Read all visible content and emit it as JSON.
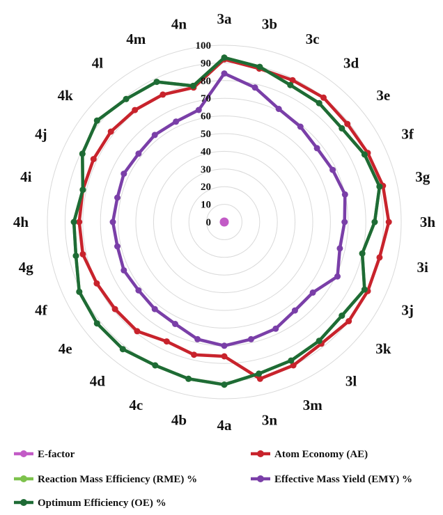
{
  "chart_data": {
    "type": "radar",
    "categories": [
      "3a",
      "3b",
      "3c",
      "3d",
      "3e",
      "3f",
      "3g",
      "3h",
      "3i",
      "3j",
      "3k",
      "3l",
      "3m",
      "3n",
      "4a",
      "4b",
      "4c",
      "4d",
      "4e",
      "4f",
      "4g",
      "4h",
      "4i",
      "4j",
      "4k",
      "4l",
      "4m",
      "4n"
    ],
    "rlim": [
      0,
      100
    ],
    "ticks": [
      "0",
      "10",
      "20",
      "30",
      "40",
      "50",
      "60",
      "70",
      "80",
      "90",
      "100"
    ],
    "grid": true,
    "legend_position": "bottom",
    "series": [
      {
        "name": "E-factor",
        "color": "#c25bc6",
        "values": [
          0,
          0,
          0,
          0,
          0,
          0,
          0,
          0,
          0,
          0,
          0,
          0,
          0,
          0,
          0,
          0,
          0,
          0,
          0,
          0,
          0,
          0,
          0,
          0,
          0,
          0,
          0,
          0
        ]
      },
      {
        "name": "Atom Economy (AE)",
        "color": "#c8232c",
        "values": [
          92,
          89,
          89,
          90,
          89,
          90,
          92,
          93,
          90,
          90,
          90,
          88,
          90,
          91,
          76,
          77,
          75,
          79,
          79,
          80,
          82,
          82,
          82,
          82,
          82,
          81,
          80,
          78
        ]
      },
      {
        "name": "Reaction Mass Efficiency (RME) %",
        "color": "#7dc24c",
        "values": [
          93,
          90,
          86,
          86,
          85,
          88,
          90,
          85,
          80,
          88,
          85,
          86,
          87,
          88,
          92,
          91,
          90,
          92,
          92,
          91,
          86,
          85,
          82,
          89,
          92,
          89,
          88,
          79
        ]
      },
      {
        "name": "Effective Mass Yield (EMY) %",
        "color": "#7a3fa8",
        "values": [
          84,
          78,
          71,
          69,
          67,
          68,
          70,
          68,
          67,
          71,
          64,
          64,
          67,
          68,
          70,
          68,
          64,
          63,
          62,
          63,
          62,
          63,
          62,
          63,
          62,
          63,
          63,
          65
        ]
      },
      {
        "name": "Optimum Efficiency (OE) %",
        "color": "#1e6b35",
        "values": [
          93,
          90,
          86,
          86,
          85,
          88,
          90,
          85,
          80,
          88,
          85,
          86,
          87,
          88,
          92,
          91,
          90,
          92,
          92,
          91,
          86,
          85,
          82,
          89,
          92,
          89,
          88,
          79
        ]
      }
    ]
  }
}
